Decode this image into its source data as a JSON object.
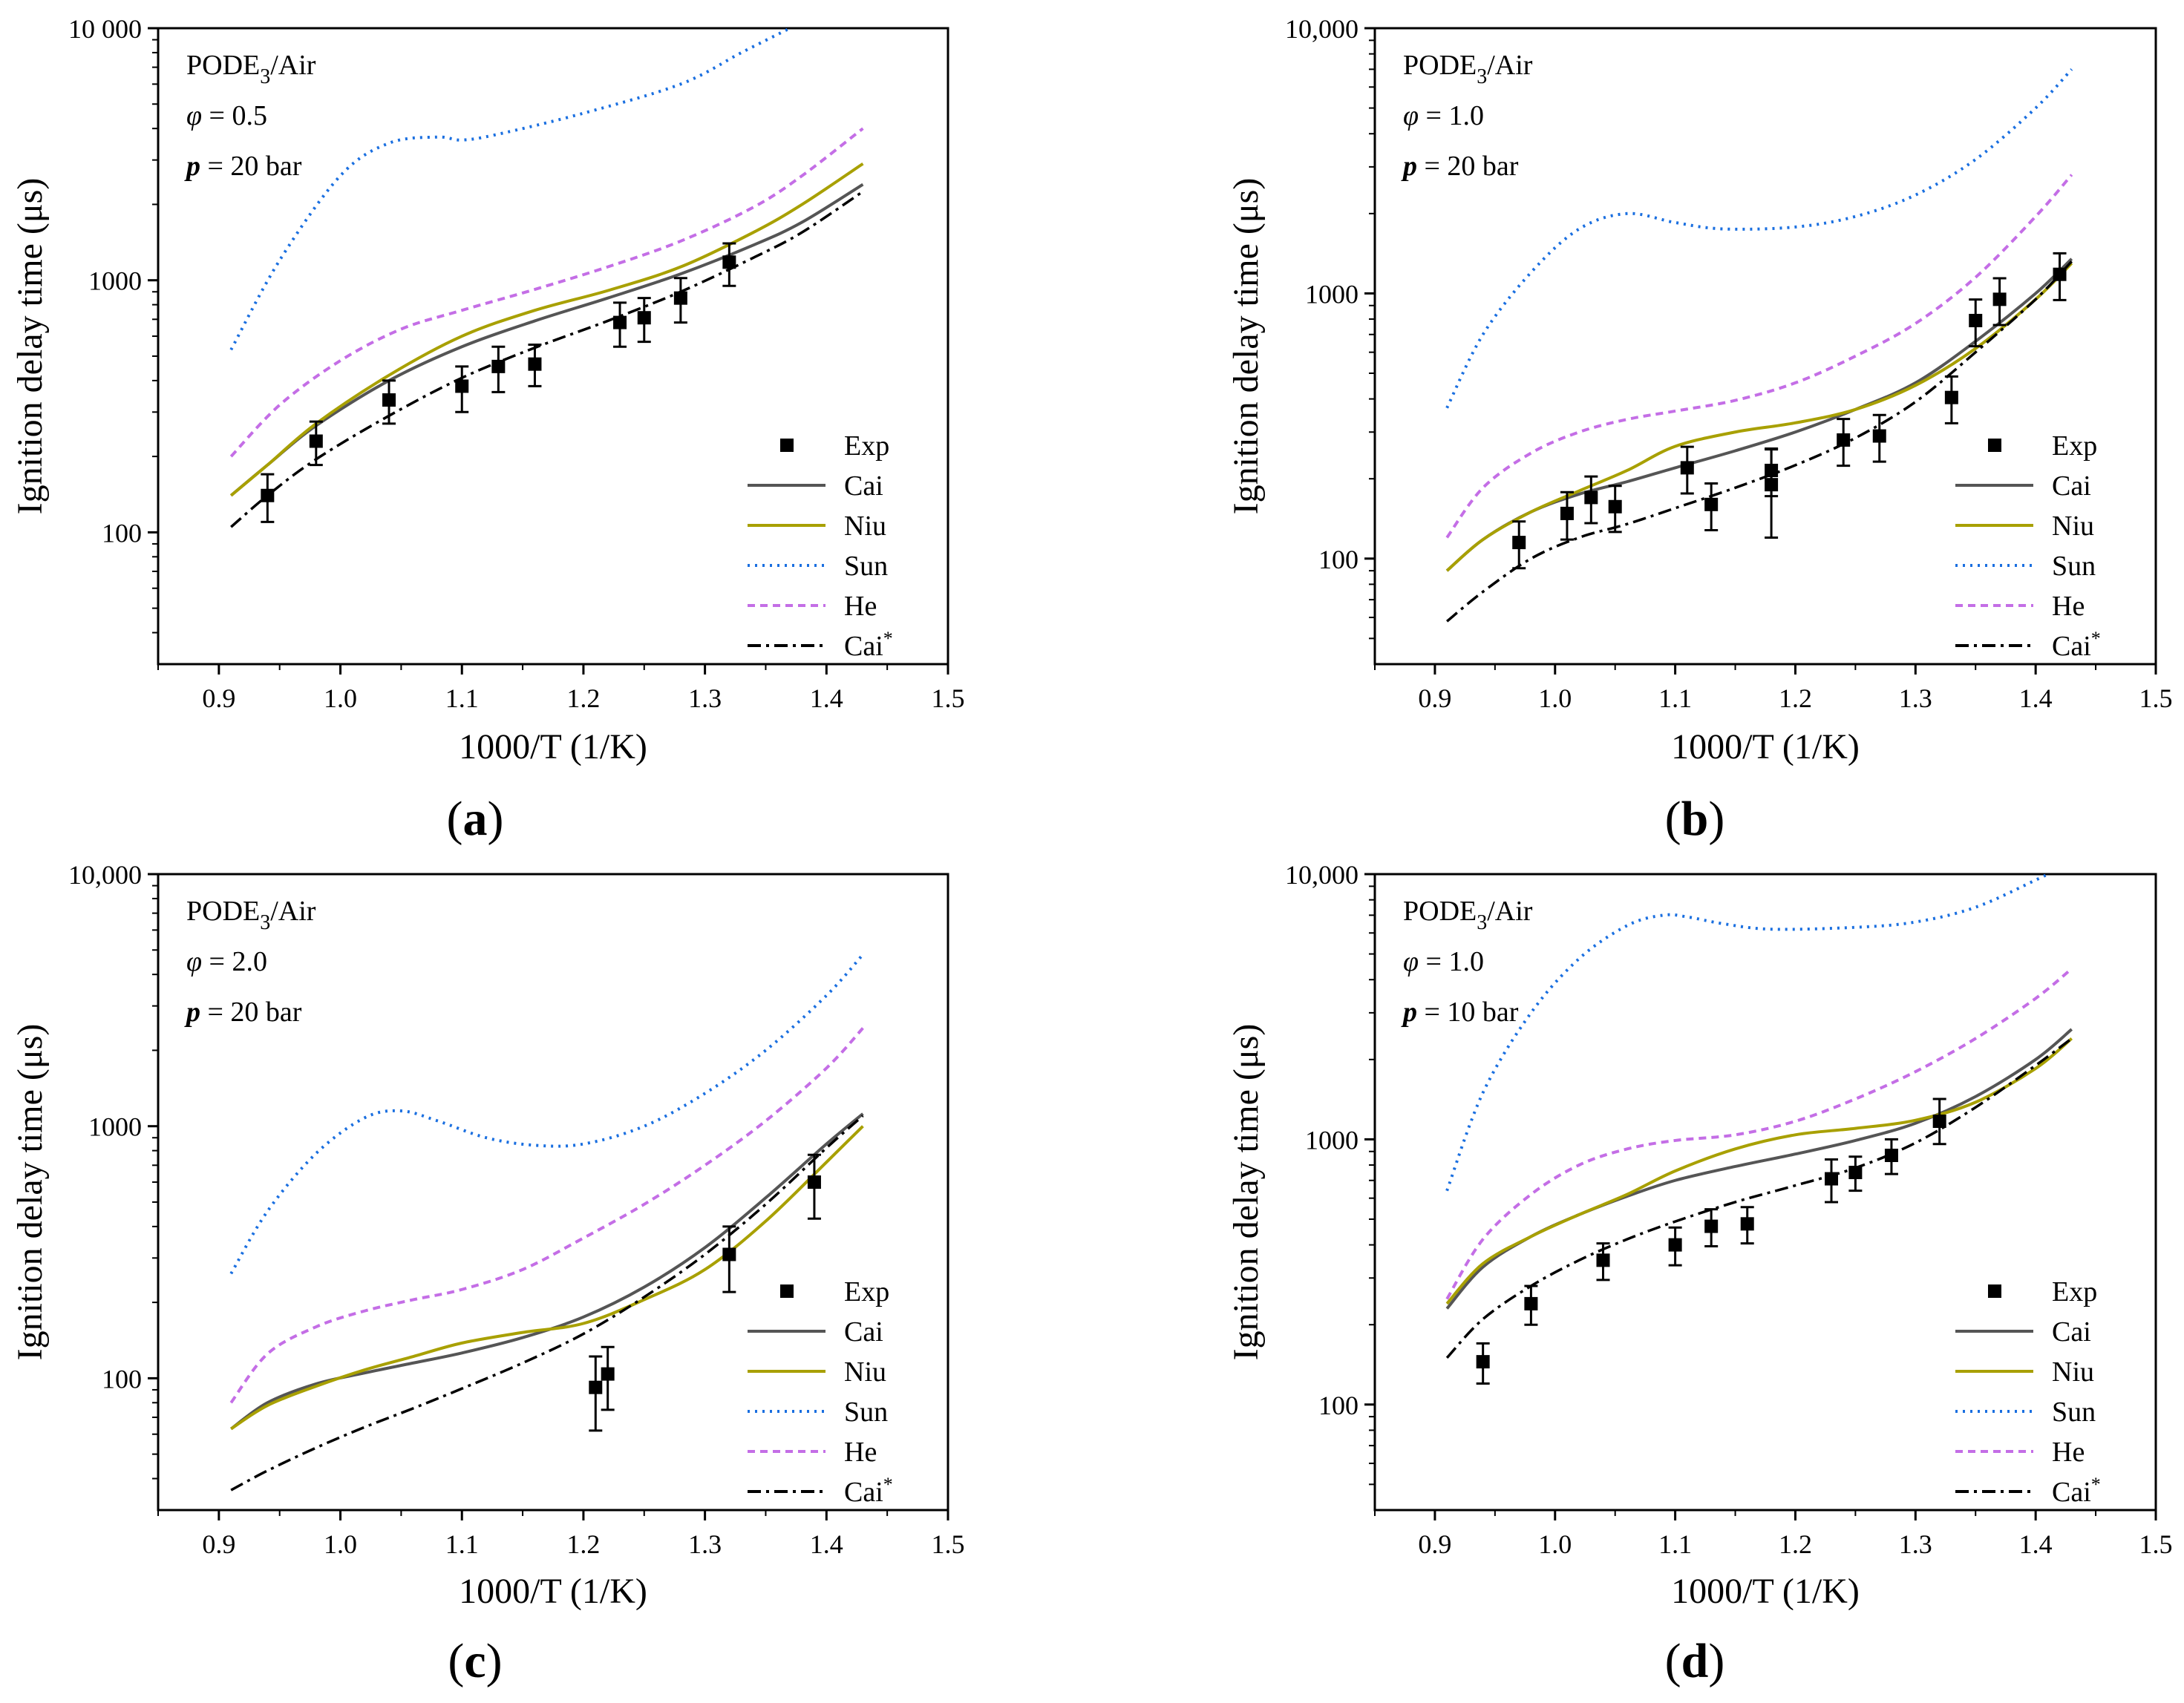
{
  "figure": {
    "colors": {
      "Exp": "#000000",
      "Cai": "#555555",
      "Niu": "#a8a000",
      "Sun": "#1a6fe0",
      "He": "#c46ee6",
      "Cai*": "#000000"
    },
    "series_styles": {
      "Cai": "solid",
      "Niu": "solid",
      "Sun": "dotted",
      "He": "dashed",
      "Cai*": "dashdot"
    }
  },
  "chart_data": [
    {
      "panel": "a",
      "panel_label": "a",
      "type": "line",
      "xlabel": "1000/T (1/K)",
      "ylabel": "Ignition delay time (μs)",
      "xlim": [
        0.85,
        1.5
      ],
      "ylim": [
        30,
        10000
      ],
      "yscale": "log",
      "x_ticks": [
        0.9,
        1.0,
        1.1,
        1.2,
        1.3,
        1.4,
        1.5
      ],
      "x_tick_labels": [
        "0.9",
        "1.0",
        "1.1",
        "1.2",
        "1.3",
        "1.4",
        "1.5"
      ],
      "y_ticks": [
        100,
        1000,
        10000
      ],
      "y_tick_labels": [
        "100",
        "1000",
        "10 000"
      ],
      "annotation": {
        "mixture": "PODE",
        "mixture_sub": "3",
        "mixture_rest": "/Air",
        "phi_symbol": "φ",
        "phi_value": " = 0.5",
        "p_symbol": "p",
        "p_value": " = 20 bar"
      },
      "legend_position": "bottom-right",
      "legend": [
        "Exp",
        "Cai",
        "Niu",
        "Sun",
        "He",
        "Cai*"
      ],
      "exp": [
        {
          "x": 0.94,
          "y": 140,
          "lo": 110,
          "hi": 170
        },
        {
          "x": 0.98,
          "y": 230,
          "lo": 185,
          "hi": 275
        },
        {
          "x": 1.04,
          "y": 335,
          "lo": 270,
          "hi": 400
        },
        {
          "x": 1.1,
          "y": 380,
          "lo": 300,
          "hi": 455
        },
        {
          "x": 1.13,
          "y": 455,
          "lo": 360,
          "hi": 545
        },
        {
          "x": 1.16,
          "y": 465,
          "lo": 380,
          "hi": 555
        },
        {
          "x": 1.23,
          "y": 680,
          "lo": 545,
          "hi": 815
        },
        {
          "x": 1.25,
          "y": 710,
          "lo": 570,
          "hi": 850
        },
        {
          "x": 1.28,
          "y": 850,
          "lo": 680,
          "hi": 1020
        },
        {
          "x": 1.32,
          "y": 1180,
          "lo": 950,
          "hi": 1400
        }
      ],
      "series": [
        {
          "name": "Cai",
          "x": [
            0.91,
            0.94,
            0.98,
            1.04,
            1.1,
            1.16,
            1.22,
            1.28,
            1.34,
            1.38,
            1.43
          ],
          "values": [
            140,
            185,
            265,
            400,
            545,
            690,
            850,
            1060,
            1380,
            1700,
            2400
          ]
        },
        {
          "name": "Niu",
          "x": [
            0.91,
            0.94,
            0.98,
            1.04,
            1.1,
            1.16,
            1.22,
            1.28,
            1.34,
            1.38,
            1.43
          ],
          "values": [
            140,
            185,
            270,
            420,
            600,
            760,
            910,
            1130,
            1550,
            2000,
            2900
          ]
        },
        {
          "name": "Sun",
          "x": [
            0.91,
            0.95,
            1.0,
            1.04,
            1.08,
            1.1,
            1.13,
            1.2,
            1.28,
            1.33,
            1.37
          ],
          "values": [
            530,
            1200,
            2600,
            3500,
            3700,
            3600,
            3800,
            4600,
            6000,
            8000,
            10000
          ]
        },
        {
          "name": "He",
          "x": [
            0.91,
            0.95,
            1.0,
            1.05,
            1.1,
            1.16,
            1.22,
            1.28,
            1.34,
            1.38,
            1.43
          ],
          "values": [
            200,
            320,
            480,
            640,
            760,
            920,
            1130,
            1430,
            1950,
            2600,
            4000
          ]
        },
        {
          "name": "Cai*",
          "x": [
            0.91,
            0.94,
            0.98,
            1.04,
            1.1,
            1.16,
            1.22,
            1.28,
            1.34,
            1.38,
            1.43
          ],
          "values": [
            105,
            140,
            195,
            290,
            410,
            540,
            690,
            900,
            1230,
            1550,
            2250
          ]
        }
      ]
    },
    {
      "panel": "b",
      "panel_label": "b",
      "type": "line",
      "xlabel": "1000/T (1/K)",
      "ylabel": "Ignition delay time (μs)",
      "xlim": [
        0.85,
        1.5
      ],
      "ylim": [
        40,
        10000
      ],
      "yscale": "log",
      "x_ticks": [
        0.9,
        1.0,
        1.1,
        1.2,
        1.3,
        1.4,
        1.5
      ],
      "x_tick_labels": [
        "0.9",
        "1.0",
        "1.1",
        "1.2",
        "1.3",
        "1.4",
        "1.5"
      ],
      "y_ticks": [
        100,
        1000,
        10000
      ],
      "y_tick_labels": [
        "100",
        "1000",
        "10,000"
      ],
      "annotation": {
        "mixture": "PODE",
        "mixture_sub": "3",
        "mixture_rest": "/Air",
        "phi_symbol": "φ",
        "phi_value": " = 1.0",
        "p_symbol": "p",
        "p_value": " = 20 bar"
      },
      "legend_position": "bottom-right",
      "legend": [
        "Exp",
        "Cai",
        "Niu",
        "Sun",
        "He",
        "Cai*"
      ],
      "exp": [
        {
          "x": 0.97,
          "y": 115,
          "lo": 92,
          "hi": 138
        },
        {
          "x": 1.01,
          "y": 148,
          "lo": 118,
          "hi": 178
        },
        {
          "x": 1.03,
          "y": 170,
          "lo": 136,
          "hi": 204
        },
        {
          "x": 1.05,
          "y": 157,
          "lo": 126,
          "hi": 188
        },
        {
          "x": 1.11,
          "y": 220,
          "lo": 176,
          "hi": 264
        },
        {
          "x": 1.13,
          "y": 160,
          "lo": 128,
          "hi": 192
        },
        {
          "x": 1.18,
          "y": 190,
          "lo": 120,
          "hi": 260
        },
        {
          "x": 1.18,
          "y": 215,
          "lo": 172,
          "hi": 258
        },
        {
          "x": 1.24,
          "y": 280,
          "lo": 224,
          "hi": 336
        },
        {
          "x": 1.27,
          "y": 290,
          "lo": 232,
          "hi": 348
        },
        {
          "x": 1.33,
          "y": 405,
          "lo": 324,
          "hi": 486
        },
        {
          "x": 1.35,
          "y": 790,
          "lo": 632,
          "hi": 948
        },
        {
          "x": 1.37,
          "y": 950,
          "lo": 760,
          "hi": 1140
        },
        {
          "x": 1.42,
          "y": 1180,
          "lo": 944,
          "hi": 1416
        }
      ],
      "series": [
        {
          "name": "Cai",
          "x": [
            0.91,
            0.94,
            0.98,
            1.02,
            1.06,
            1.1,
            1.15,
            1.2,
            1.25,
            1.3,
            1.35,
            1.4,
            1.43
          ],
          "values": [
            90,
            118,
            150,
            175,
            195,
            220,
            255,
            300,
            365,
            460,
            660,
            1000,
            1350
          ]
        },
        {
          "name": "Niu",
          "x": [
            0.91,
            0.94,
            0.98,
            1.02,
            1.06,
            1.1,
            1.15,
            1.2,
            1.25,
            1.3,
            1.35,
            1.4,
            1.43
          ],
          "values": [
            90,
            118,
            150,
            180,
            215,
            265,
            300,
            325,
            365,
            450,
            620,
            950,
            1300
          ]
        },
        {
          "name": "Sun",
          "x": [
            0.91,
            0.94,
            0.98,
            1.02,
            1.06,
            1.1,
            1.14,
            1.2,
            1.25,
            1.3,
            1.35,
            1.4,
            1.43
          ],
          "values": [
            370,
            700,
            1200,
            1750,
            2000,
            1850,
            1750,
            1780,
            1950,
            2350,
            3200,
            5000,
            7000
          ]
        },
        {
          "name": "He",
          "x": [
            0.91,
            0.94,
            0.98,
            1.02,
            1.06,
            1.1,
            1.15,
            1.2,
            1.25,
            1.3,
            1.35,
            1.4,
            1.43
          ],
          "values": [
            120,
            185,
            250,
            300,
            335,
            360,
            395,
            460,
            580,
            770,
            1150,
            1950,
            2800
          ]
        },
        {
          "name": "Cai*",
          "x": [
            0.91,
            0.94,
            0.98,
            1.02,
            1.06,
            1.1,
            1.15,
            1.2,
            1.25,
            1.3,
            1.35,
            1.4,
            1.43
          ],
          "values": [
            58,
            75,
            100,
            120,
            135,
            155,
            185,
            225,
            285,
            390,
            600,
            950,
            1320
          ]
        }
      ]
    },
    {
      "panel": "c",
      "panel_label": "c",
      "type": "line",
      "xlabel": "1000/T (1/K)",
      "ylabel": "Ignition delay time (μs)",
      "xlim": [
        0.85,
        1.5
      ],
      "ylim": [
        30,
        10000
      ],
      "yscale": "log",
      "x_ticks": [
        0.9,
        1.0,
        1.1,
        1.2,
        1.3,
        1.4,
        1.5
      ],
      "x_tick_labels": [
        "0.9",
        "1.0",
        "1.1",
        "1.2",
        "1.3",
        "1.4",
        "1.5"
      ],
      "y_ticks": [
        100,
        1000,
        10000
      ],
      "y_tick_labels": [
        "100",
        "1000",
        "10,000"
      ],
      "annotation": {
        "mixture": "PODE",
        "mixture_sub": "3",
        "mixture_rest": "/Air",
        "phi_symbol": "φ",
        "phi_value": " = 2.0",
        "p_symbol": "p",
        "p_value": " = 20 bar"
      },
      "legend_position": "bottom-right",
      "legend": [
        "Exp",
        "Cai",
        "Niu",
        "Sun",
        "He",
        "Cai*"
      ],
      "exp": [
        {
          "x": 1.21,
          "y": 92,
          "lo": 62,
          "hi": 122
        },
        {
          "x": 1.22,
          "y": 104,
          "lo": 75,
          "hi": 133
        },
        {
          "x": 1.32,
          "y": 310,
          "lo": 220,
          "hi": 400
        },
        {
          "x": 1.39,
          "y": 600,
          "lo": 430,
          "hi": 770
        }
      ],
      "series": [
        {
          "name": "Cai",
          "x": [
            0.91,
            0.94,
            0.98,
            1.02,
            1.06,
            1.1,
            1.15,
            1.2,
            1.25,
            1.3,
            1.35,
            1.4,
            1.43
          ],
          "values": [
            63,
            80,
            95,
            105,
            115,
            126,
            145,
            175,
            230,
            330,
            520,
            850,
            1120
          ]
        },
        {
          "name": "Niu",
          "x": [
            0.91,
            0.94,
            0.98,
            1.02,
            1.06,
            1.1,
            1.15,
            1.2,
            1.25,
            1.3,
            1.35,
            1.4,
            1.43
          ],
          "values": [
            63,
            78,
            93,
            108,
            122,
            138,
            152,
            165,
            205,
            270,
            420,
            720,
            1000
          ]
        },
        {
          "name": "Sun",
          "x": [
            0.91,
            0.94,
            0.98,
            1.02,
            1.05,
            1.08,
            1.12,
            1.16,
            1.2,
            1.25,
            1.3,
            1.35,
            1.4,
            1.43
          ],
          "values": [
            260,
            460,
            780,
            1080,
            1150,
            1050,
            900,
            840,
            850,
            1000,
            1350,
            2000,
            3300,
            4800
          ]
        },
        {
          "name": "He",
          "x": [
            0.91,
            0.94,
            0.98,
            1.02,
            1.06,
            1.1,
            1.15,
            1.2,
            1.25,
            1.3,
            1.35,
            1.4,
            1.43
          ],
          "values": [
            80,
            125,
            160,
            185,
            205,
            225,
            270,
            360,
            490,
            700,
            1050,
            1700,
            2450
          ]
        },
        {
          "name": "Cai*",
          "x": [
            0.91,
            0.94,
            0.98,
            1.02,
            1.06,
            1.1,
            1.15,
            1.2,
            1.25,
            1.3,
            1.35,
            1.4,
            1.43
          ],
          "values": [
            36,
            43,
            53,
            64,
            76,
            91,
            115,
            150,
            210,
            310,
            490,
            820,
            1100
          ]
        }
      ]
    },
    {
      "panel": "d",
      "panel_label": "d",
      "type": "line",
      "xlabel": "1000/T (1/K)",
      "ylabel": "Ignition delay time (μs)",
      "xlim": [
        0.85,
        1.5
      ],
      "ylim": [
        40,
        10000
      ],
      "yscale": "log",
      "x_ticks": [
        0.9,
        1.0,
        1.1,
        1.2,
        1.3,
        1.4,
        1.5
      ],
      "x_tick_labels": [
        "0.9",
        "1.0",
        "1.1",
        "1.2",
        "1.3",
        "1.4",
        "1.5"
      ],
      "y_ticks": [
        100,
        1000,
        10000
      ],
      "y_tick_labels": [
        "100",
        "1000",
        "10,000"
      ],
      "annotation": {
        "mixture": "PODE",
        "mixture_sub": "3",
        "mixture_rest": "/Air",
        "phi_symbol": "φ",
        "phi_value": " = 1.0",
        "p_symbol": "p",
        "p_value": " = 10 bar"
      },
      "legend_position": "bottom-right",
      "legend": [
        "Exp",
        "Cai",
        "Niu",
        "Sun",
        "He",
        "Cai*"
      ],
      "exp": [
        {
          "x": 0.94,
          "y": 145,
          "lo": 120,
          "hi": 170
        },
        {
          "x": 0.98,
          "y": 240,
          "lo": 200,
          "hi": 280
        },
        {
          "x": 1.04,
          "y": 350,
          "lo": 295,
          "hi": 405
        },
        {
          "x": 1.1,
          "y": 400,
          "lo": 335,
          "hi": 465
        },
        {
          "x": 1.13,
          "y": 470,
          "lo": 395,
          "hi": 545
        },
        {
          "x": 1.16,
          "y": 480,
          "lo": 405,
          "hi": 555
        },
        {
          "x": 1.23,
          "y": 710,
          "lo": 580,
          "hi": 840
        },
        {
          "x": 1.25,
          "y": 750,
          "lo": 640,
          "hi": 860
        },
        {
          "x": 1.28,
          "y": 870,
          "lo": 740,
          "hi": 1000
        },
        {
          "x": 1.32,
          "y": 1170,
          "lo": 960,
          "hi": 1420
        }
      ],
      "series": [
        {
          "name": "Cai",
          "x": [
            0.91,
            0.94,
            0.98,
            1.02,
            1.06,
            1.1,
            1.15,
            1.2,
            1.25,
            1.3,
            1.35,
            1.4,
            1.43
          ],
          "values": [
            230,
            330,
            430,
            520,
            610,
            700,
            790,
            880,
            990,
            1150,
            1450,
            2000,
            2600
          ]
        },
        {
          "name": "Niu",
          "x": [
            0.91,
            0.94,
            0.98,
            1.02,
            1.06,
            1.1,
            1.15,
            1.2,
            1.25,
            1.3,
            1.35,
            1.4,
            1.43
          ],
          "values": [
            240,
            340,
            430,
            520,
            620,
            760,
            920,
            1040,
            1100,
            1180,
            1380,
            1850,
            2400
          ]
        },
        {
          "name": "Sun",
          "x": [
            0.91,
            0.94,
            0.98,
            1.02,
            1.06,
            1.09,
            1.11,
            1.14,
            1.18,
            1.25,
            1.3,
            1.35,
            1.4,
            1.41
          ],
          "values": [
            640,
            1500,
            3000,
            4800,
            6400,
            7000,
            6900,
            6500,
            6200,
            6300,
            6600,
            7500,
            9500,
            10000
          ]
        },
        {
          "name": "He",
          "x": [
            0.91,
            0.94,
            0.98,
            1.02,
            1.06,
            1.1,
            1.15,
            1.2,
            1.25,
            1.3,
            1.35,
            1.4,
            1.43
          ],
          "values": [
            250,
            420,
            620,
            800,
            920,
            990,
            1040,
            1170,
            1420,
            1800,
            2400,
            3400,
            4400
          ]
        },
        {
          "name": "Cai*",
          "x": [
            0.91,
            0.94,
            0.98,
            1.02,
            1.06,
            1.1,
            1.15,
            1.2,
            1.25,
            1.3,
            1.35,
            1.4,
            1.43
          ],
          "values": [
            150,
            210,
            280,
            350,
            420,
            490,
            580,
            670,
            780,
            970,
            1320,
            1900,
            2400
          ]
        }
      ]
    }
  ]
}
